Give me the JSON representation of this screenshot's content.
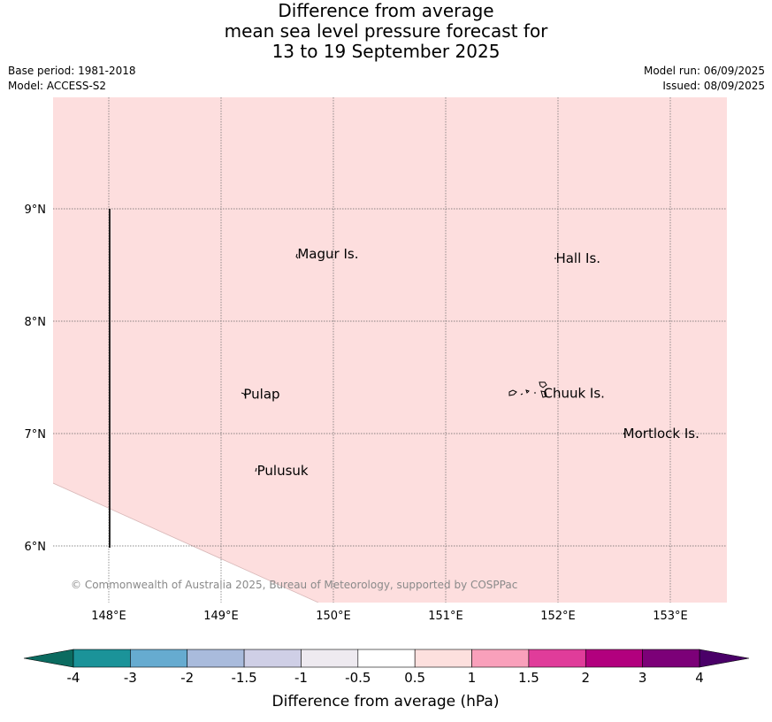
{
  "header": {
    "title_lines": [
      "Difference from average",
      "mean sea level pressure forecast for",
      "13 to 19 September 2025"
    ],
    "base_period": "Base period: 1981-2018",
    "model": "Model: ACCESS-S2",
    "model_run": "Model run: 06/09/2025",
    "issued": "Issued: 08/09/2025"
  },
  "map": {
    "copyright": "© Commonwealth of Australia 2025, Bureau of Meteorology, supported by COSPPac",
    "lon_labels": [
      "148°E",
      "149°E",
      "150°E",
      "151°E",
      "152°E",
      "153°E"
    ],
    "lat_labels": [
      "9°N",
      "8°N",
      "7°N",
      "6°N"
    ],
    "fill_color": "#fddede",
    "places": [
      {
        "name": "Magur Is.",
        "lon": 149.68,
        "lat": 8.56
      },
      {
        "name": "Hall Is.",
        "lon": 151.98,
        "lat": 8.52
      },
      {
        "name": "Pulap",
        "lon": 149.2,
        "lat": 7.31
      },
      {
        "name": "Chuuk Is.",
        "lon": 151.87,
        "lat": 7.32
      },
      {
        "name": "Mortlock Is.",
        "lon": 152.58,
        "lat": 6.96
      },
      {
        "name": "Pulusuk",
        "lon": 149.32,
        "lat": 6.63
      }
    ]
  },
  "colorbar": {
    "label": "Difference from average (hPa)",
    "tick_labels": [
      "-4",
      "-3",
      "-2",
      "-1.5",
      "-1",
      "-0.5",
      "0.5",
      "1",
      "1.5",
      "2",
      "3",
      "4"
    ],
    "low_extend_color": "#0b6b60",
    "high_extend_color": "#4a0068",
    "colors": [
      "#1b9399",
      "#66abd0",
      "#a9bbdc",
      "#cfcfe6",
      "#eeeaf0",
      "#ffffff",
      "#fde0de",
      "#f9a0bb",
      "#e03c9a",
      "#b2007e",
      "#7c0078"
    ]
  }
}
